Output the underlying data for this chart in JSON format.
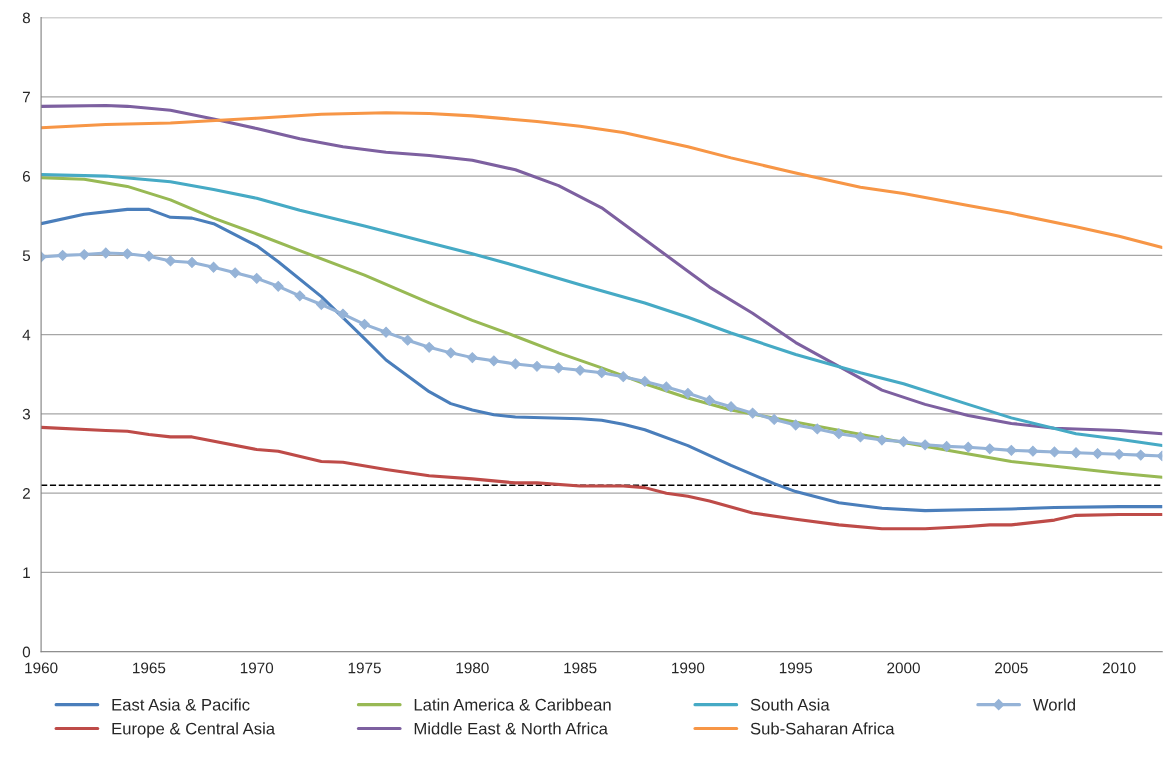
{
  "chart_data": {
    "type": "line",
    "xlim": [
      1960,
      2012
    ],
    "xticks": [
      1960,
      1965,
      1970,
      1975,
      1980,
      1985,
      1990,
      1995,
      2000,
      2005,
      2010
    ],
    "ylim": [
      0,
      8
    ],
    "yticks": [
      0,
      1,
      2,
      3,
      4,
      5,
      6,
      7,
      8
    ],
    "grid": "y",
    "legend": "bottom",
    "marker": "none",
    "line_style": "solid",
    "ref_lines": [
      {
        "axis": "y",
        "value": 2.1,
        "color": "#000000",
        "line_style": "dashed"
      }
    ],
    "series": [
      {
        "name": "East Asia & Pacific",
        "color": "#4a7ebb",
        "x": [
          1960,
          1962,
          1964,
          1965,
          1966,
          1967,
          1968,
          1970,
          1971,
          1973,
          1975,
          1976,
          1978,
          1979,
          1980,
          1981,
          1982,
          1985,
          1986,
          1987,
          1988,
          1990,
          1992,
          1994,
          1995,
          1997,
          1999,
          2001,
          2003,
          2005,
          2007,
          2010,
          2012
        ],
        "values": [
          5.4,
          5.52,
          5.58,
          5.58,
          5.48,
          5.47,
          5.4,
          5.12,
          4.92,
          4.48,
          3.95,
          3.68,
          3.28,
          3.13,
          3.05,
          2.99,
          2.96,
          2.94,
          2.92,
          2.87,
          2.8,
          2.6,
          2.35,
          2.12,
          2.02,
          1.88,
          1.81,
          1.78,
          1.79,
          1.8,
          1.82,
          1.83,
          1.83
        ]
      },
      {
        "name": "Europe & Central Asia",
        "color": "#be4b48",
        "x": [
          1960,
          1963,
          1964,
          1965,
          1966,
          1967,
          1970,
          1971,
          1973,
          1974,
          1976,
          1978,
          1980,
          1982,
          1983,
          1985,
          1987,
          1988,
          1989,
          1990,
          1991,
          1993,
          1995,
          1997,
          1999,
          2001,
          2003,
          2004,
          2005,
          2007,
          2008,
          2010,
          2012
        ],
        "values": [
          2.83,
          2.79,
          2.78,
          2.74,
          2.71,
          2.71,
          2.55,
          2.53,
          2.4,
          2.39,
          2.3,
          2.22,
          2.18,
          2.13,
          2.13,
          2.09,
          2.09,
          2.07,
          2.0,
          1.96,
          1.9,
          1.75,
          1.67,
          1.6,
          1.55,
          1.55,
          1.58,
          1.6,
          1.6,
          1.66,
          1.72,
          1.73,
          1.73
        ]
      },
      {
        "name": "Latin America & Caribbean",
        "color": "#98b954",
        "x": [
          1960,
          1962,
          1964,
          1966,
          1968,
          1970,
          1972,
          1975,
          1978,
          1980,
          1982,
          1984,
          1986,
          1988,
          1990,
          1992,
          2000,
          2005,
          2010,
          2012
        ],
        "values": [
          5.98,
          5.96,
          5.87,
          5.7,
          5.47,
          5.27,
          5.06,
          4.75,
          4.4,
          4.18,
          3.98,
          3.77,
          3.58,
          3.38,
          3.2,
          3.05,
          2.64,
          2.4,
          2.25,
          2.2
        ]
      },
      {
        "name": "Middle East & North Africa",
        "color": "#7d60a0",
        "x": [
          1960,
          1963,
          1964,
          1966,
          1968,
          1970,
          1972,
          1974,
          1976,
          1978,
          1980,
          1982,
          1984,
          1986,
          1988,
          1990,
          1991,
          1993,
          1995,
          1997,
          1999,
          2001,
          2003,
          2005,
          2007,
          2010,
          2012
        ],
        "values": [
          6.88,
          6.89,
          6.88,
          6.83,
          6.72,
          6.6,
          6.47,
          6.37,
          6.3,
          6.26,
          6.2,
          6.08,
          5.88,
          5.6,
          5.2,
          4.8,
          4.6,
          4.27,
          3.9,
          3.6,
          3.3,
          3.12,
          2.98,
          2.88,
          2.82,
          2.79,
          2.75
        ]
      },
      {
        "name": "South Asia",
        "color": "#46aac5",
        "x": [
          1960,
          1963,
          1966,
          1968,
          1970,
          1972,
          1975,
          1978,
          1980,
          1982,
          1985,
          1988,
          1990,
          1992,
          1995,
          1998,
          2000,
          2003,
          2005,
          2008,
          2010,
          2012
        ],
        "values": [
          6.02,
          6.0,
          5.93,
          5.83,
          5.72,
          5.57,
          5.37,
          5.16,
          5.02,
          4.87,
          4.63,
          4.4,
          4.22,
          4.02,
          3.75,
          3.52,
          3.38,
          3.12,
          2.95,
          2.75,
          2.68,
          2.6
        ]
      },
      {
        "name": "Sub-Saharan Africa",
        "color": "#f79646",
        "x": [
          1960,
          1963,
          1966,
          1970,
          1973,
          1976,
          1978,
          1980,
          1983,
          1985,
          1987,
          1990,
          1992,
          1995,
          1998,
          2000,
          2003,
          2005,
          2008,
          2010,
          2012
        ],
        "values": [
          6.61,
          6.65,
          6.67,
          6.73,
          6.78,
          6.8,
          6.79,
          6.76,
          6.69,
          6.63,
          6.55,
          6.37,
          6.23,
          6.04,
          5.86,
          5.78,
          5.63,
          5.53,
          5.36,
          5.24,
          5.1
        ]
      },
      {
        "name": "World",
        "color": "#95b3d7",
        "marker": "diamond",
        "x": [
          1960,
          1961,
          1962,
          1963,
          1964,
          1965,
          1966,
          1967,
          1968,
          1969,
          1970,
          1971,
          1972,
          1973,
          1974,
          1975,
          1976,
          1977,
          1978,
          1979,
          1980,
          1981,
          1982,
          1983,
          1984,
          1985,
          1986,
          1987,
          1988,
          1989,
          1990,
          1991,
          1992,
          1993,
          1994,
          1995,
          1996,
          1997,
          1998,
          1999,
          2000,
          2001,
          2002,
          2003,
          2004,
          2005,
          2006,
          2007,
          2008,
          2009,
          2010,
          2011,
          2012
        ],
        "values": [
          4.98,
          5.0,
          5.01,
          5.03,
          5.02,
          4.99,
          4.93,
          4.91,
          4.85,
          4.78,
          4.71,
          4.61,
          4.49,
          4.38,
          4.26,
          4.13,
          4.03,
          3.93,
          3.84,
          3.77,
          3.71,
          3.67,
          3.63,
          3.6,
          3.58,
          3.55,
          3.52,
          3.47,
          3.41,
          3.34,
          3.26,
          3.17,
          3.09,
          3.01,
          2.93,
          2.86,
          2.81,
          2.75,
          2.71,
          2.67,
          2.65,
          2.61,
          2.59,
          2.58,
          2.56,
          2.54,
          2.53,
          2.52,
          2.51,
          2.5,
          2.49,
          2.48,
          2.47
        ]
      }
    ]
  }
}
